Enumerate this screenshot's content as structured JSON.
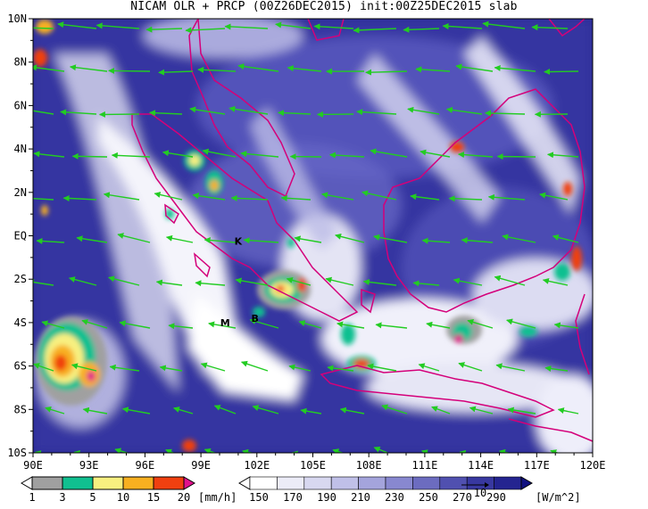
{
  "title": "NICAM OLR + PRCP (00Z26DEC2015) init:00Z25DEC2015 slab",
  "map": {
    "lon_range": [
      90,
      120
    ],
    "lat_range": [
      -10,
      10
    ],
    "x_ticks": [
      "90E",
      "93E",
      "96E",
      "99E",
      "102E",
      "105E",
      "108E",
      "111E",
      "114E",
      "117E",
      "120E"
    ],
    "y_ticks": [
      "10N",
      "8N",
      "6N",
      "4N",
      "2N",
      "EQ",
      "2S",
      "4S",
      "6S",
      "8S",
      "10S"
    ],
    "colors": {
      "coast": "#d4007a",
      "wind": "#22cc22",
      "olr_low": "#1c1c8c",
      "olr_mid": "#4a4ab4",
      "cloud": "#ffffff"
    },
    "stations": [
      {
        "label": "K",
        "lon": 101.0,
        "lat": -0.25
      },
      {
        "label": "M",
        "lon": 100.3,
        "lat": -4.0
      },
      {
        "label": "B",
        "lon": 101.9,
        "lat": -3.8
      }
    ]
  },
  "precip_legend": {
    "values": [
      "1",
      "3",
      "5",
      "10",
      "15",
      "20"
    ],
    "units": "[mm/h]",
    "colors": [
      "#a0a0a0",
      "#10c090",
      "#f8f080",
      "#f8b020",
      "#f04010",
      "#e0108c"
    ]
  },
  "olr_legend": {
    "values": [
      "150",
      "170",
      "190",
      "210",
      "230",
      "250",
      "270",
      "290"
    ],
    "units": "[W/m^2]",
    "arrow_label": "10",
    "colors": [
      "#ffffff",
      "#ececf8",
      "#d8d8f0",
      "#c0c0e8",
      "#a4a4dc",
      "#8888d0",
      "#6c6cc0",
      "#5050b0",
      "#3838a0",
      "#242490",
      "#101080"
    ]
  }
}
